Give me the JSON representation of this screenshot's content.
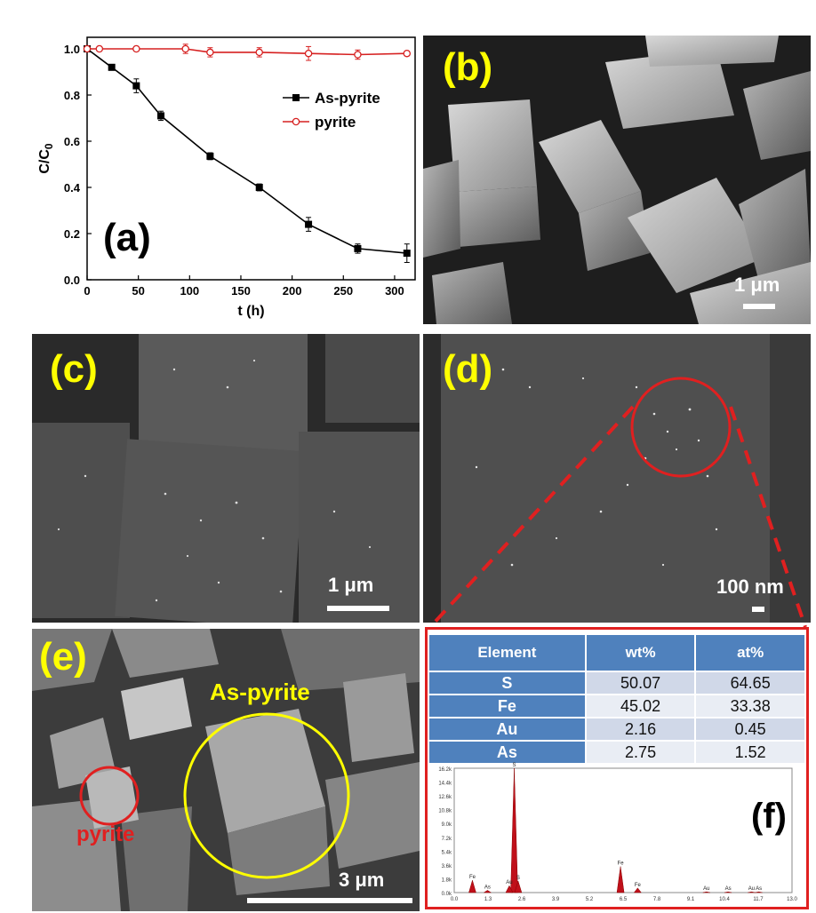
{
  "panels": {
    "a": {
      "label": "(a)"
    },
    "b": {
      "label": "(b)",
      "scale": "1 μm"
    },
    "c": {
      "label": "(c)",
      "scale": "1 μm"
    },
    "d": {
      "label": "(d)",
      "scale": "100 nm"
    },
    "e": {
      "label": "(e)",
      "scale": "3 μm",
      "as_pyrite_label": "As-pyrite",
      "pyrite_label": "pyrite"
    },
    "f": {
      "label": "(f)"
    }
  },
  "colors": {
    "label_yellow": "#ffff00",
    "red": "#e02020",
    "table_header": "#4f81bd"
  },
  "chart_data": {
    "type": "line",
    "xlabel": "t (h)",
    "ylabel": "C/C0",
    "xlim": [
      0,
      320
    ],
    "ylim": [
      0,
      1.05
    ],
    "xticks": [
      "0",
      "50",
      "100",
      "150",
      "200",
      "250",
      "300"
    ],
    "yticks": [
      "0.0",
      "0.2",
      "0.4",
      "0.6",
      "0.8",
      "1.0"
    ],
    "legend": "top-right",
    "series": [
      {
        "name": "As-pyrite",
        "color": "#000000",
        "marker": "filled-square",
        "x": [
          0,
          24,
          48,
          72,
          120,
          168,
          216,
          264,
          312
        ],
        "y": [
          1.0,
          0.92,
          0.84,
          0.71,
          0.535,
          0.4,
          0.24,
          0.135,
          0.115
        ],
        "err": [
          0.0,
          0.01,
          0.03,
          0.02,
          0.015,
          0.015,
          0.03,
          0.02,
          0.04
        ]
      },
      {
        "name": "pyrite",
        "color": "#d62020",
        "marker": "open-circle",
        "x": [
          0,
          12,
          48,
          96,
          120,
          168,
          216,
          264,
          312
        ],
        "y": [
          1.0,
          1.0,
          1.0,
          1.0,
          0.985,
          0.985,
          0.98,
          0.975,
          0.98
        ],
        "err": [
          0.0,
          0.01,
          0.01,
          0.02,
          0.02,
          0.02,
          0.03,
          0.02,
          0.01
        ]
      }
    ]
  },
  "eds_table": {
    "headers": [
      "Element",
      "wt%",
      "at%"
    ],
    "rows": [
      {
        "element": "S",
        "wt": "50.07",
        "at": "64.65"
      },
      {
        "element": "Fe",
        "wt": "45.02",
        "at": "33.38"
      },
      {
        "element": "Au",
        "wt": "2.16",
        "at": "0.45"
      },
      {
        "element": "As",
        "wt": "2.75",
        "at": "1.52"
      }
    ]
  },
  "spectrum": {
    "y_ticks": [
      "16.2k",
      "14.4k",
      "12.6k",
      "10.8k",
      "9.0k",
      "7.2k",
      "5.4k",
      "3.6k",
      "1.8k",
      "0.0k"
    ],
    "x_ticks": [
      "0.0",
      "1.3",
      "2.6",
      "3.9",
      "5.2",
      "6.5",
      "7.8",
      "9.1",
      "10.4",
      "11.7",
      "13.0"
    ],
    "peaks": [
      {
        "label": "S",
        "kev": 2.31,
        "height": 16.2
      },
      {
        "label": "Fe",
        "kev": 6.4,
        "height": 3.4
      },
      {
        "label": "Fe",
        "kev": 0.7,
        "height": 1.6
      },
      {
        "label": "Fe",
        "kev": 7.06,
        "height": 0.6
      },
      {
        "label": "S",
        "kev": 2.46,
        "height": 1.5
      },
      {
        "label": "As",
        "kev": 1.28,
        "height": 0.3
      },
      {
        "label": "Au",
        "kev": 2.12,
        "height": 0.9
      },
      {
        "label": "Au",
        "kev": 9.71,
        "height": 0.1
      },
      {
        "label": "As",
        "kev": 10.54,
        "height": 0.1
      },
      {
        "label": "Au",
        "kev": 11.44,
        "height": 0.1
      },
      {
        "label": "As",
        "kev": 11.72,
        "height": 0.1
      }
    ],
    "peak_labels_visible": [
      "Fe",
      "As",
      "Au",
      "S",
      "Fe",
      "Au",
      "As",
      "Au",
      "As",
      "Au As"
    ]
  }
}
